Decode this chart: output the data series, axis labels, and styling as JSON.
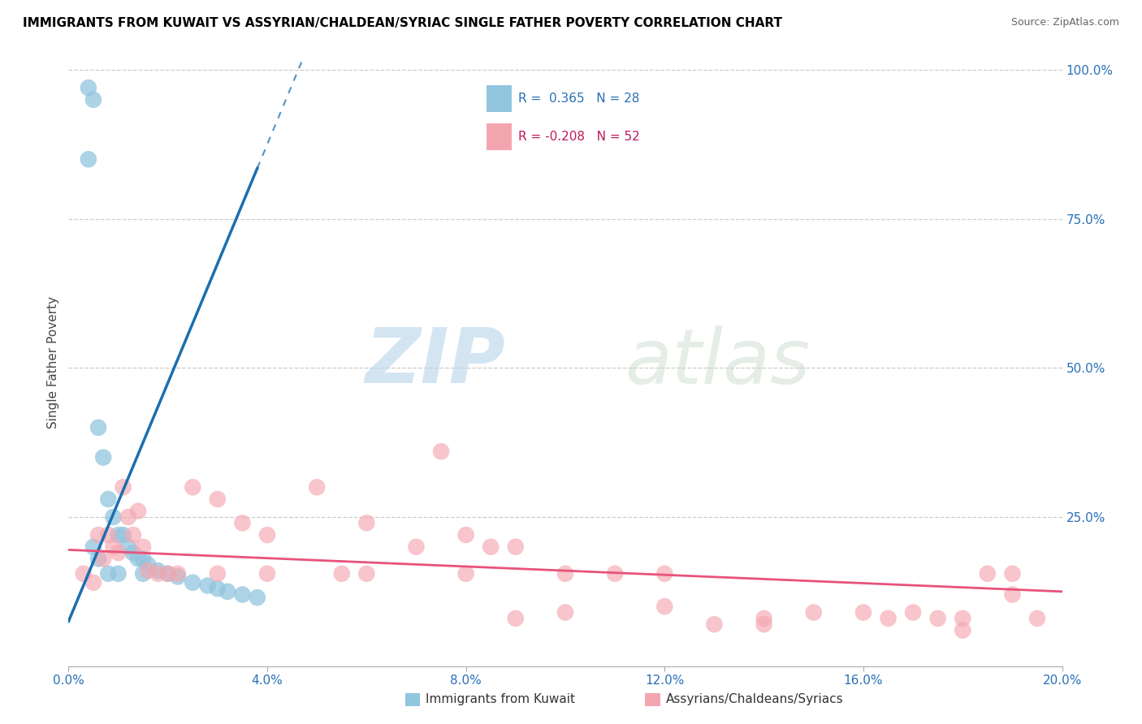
{
  "title": "IMMIGRANTS FROM KUWAIT VS ASSYRIAN/CHALDEAN/SYRIAC SINGLE FATHER POVERTY CORRELATION CHART",
  "source": "Source: ZipAtlas.com",
  "ylabel": "Single Father Poverty",
  "legend_blue_r": "0.365",
  "legend_blue_n": "28",
  "legend_pink_r": "-0.208",
  "legend_pink_n": "52",
  "blue_color": "#92c5de",
  "pink_color": "#f4a6b0",
  "blue_line_color": "#1a6faf",
  "pink_line_color": "#e8537a",
  "watermark_zip": "ZIP",
  "watermark_atlas": "atlas",
  "blue_x": [
    0.0004,
    0.0005,
    0.0006,
    0.0007,
    0.0008,
    0.0009,
    0.001,
    0.0011,
    0.0012,
    0.0013,
    0.0014,
    0.0015,
    0.0016,
    0.0018,
    0.002,
    0.0022,
    0.0025,
    0.0028,
    0.003,
    0.0032,
    0.0035,
    0.0038,
    0.0004,
    0.0005,
    0.0006,
    0.0008,
    0.001,
    0.0015
  ],
  "blue_y": [
    0.97,
    0.95,
    0.4,
    0.35,
    0.28,
    0.25,
    0.22,
    0.22,
    0.2,
    0.19,
    0.18,
    0.18,
    0.17,
    0.16,
    0.155,
    0.15,
    0.14,
    0.135,
    0.13,
    0.125,
    0.12,
    0.115,
    0.85,
    0.2,
    0.18,
    0.155,
    0.155,
    0.155
  ],
  "pink_x": [
    0.0003,
    0.0005,
    0.0006,
    0.0007,
    0.0008,
    0.0009,
    0.001,
    0.0011,
    0.0012,
    0.0013,
    0.0014,
    0.0015,
    0.0016,
    0.0018,
    0.002,
    0.0022,
    0.0025,
    0.003,
    0.0035,
    0.004,
    0.0055,
    0.006,
    0.0075,
    0.008,
    0.0085,
    0.009,
    0.01,
    0.011,
    0.012,
    0.013,
    0.014,
    0.015,
    0.016,
    0.0165,
    0.017,
    0.0175,
    0.018,
    0.0185,
    0.019,
    0.0195,
    0.003,
    0.004,
    0.005,
    0.006,
    0.007,
    0.008,
    0.009,
    0.01,
    0.012,
    0.014,
    0.018,
    0.019
  ],
  "pink_y": [
    0.155,
    0.14,
    0.22,
    0.18,
    0.22,
    0.2,
    0.19,
    0.3,
    0.25,
    0.22,
    0.26,
    0.2,
    0.16,
    0.155,
    0.155,
    0.155,
    0.3,
    0.28,
    0.24,
    0.22,
    0.155,
    0.155,
    0.36,
    0.22,
    0.2,
    0.2,
    0.155,
    0.155,
    0.155,
    0.07,
    0.07,
    0.09,
    0.09,
    0.08,
    0.09,
    0.08,
    0.06,
    0.155,
    0.12,
    0.08,
    0.155,
    0.155,
    0.3,
    0.24,
    0.2,
    0.155,
    0.08,
    0.09,
    0.1,
    0.08,
    0.08,
    0.155
  ]
}
